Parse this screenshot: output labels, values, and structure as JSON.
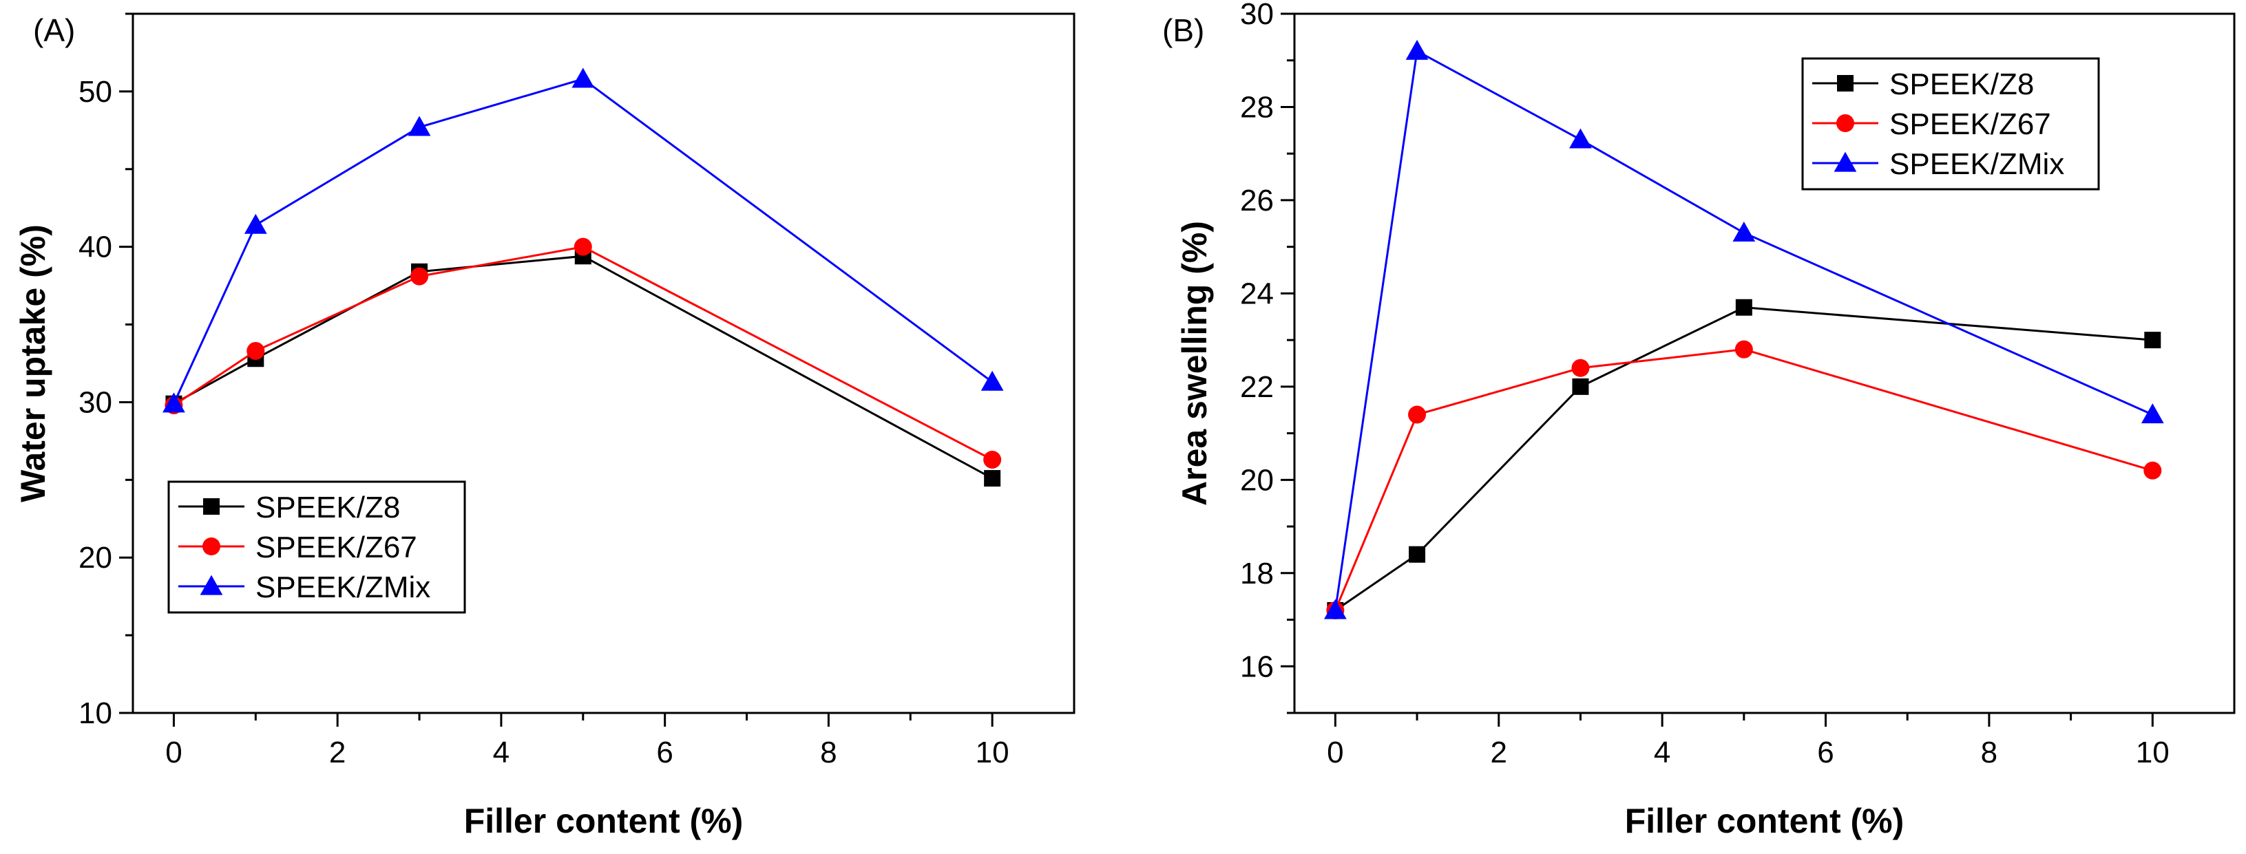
{
  "chart_data": [
    {
      "type": "line",
      "panel": "(A)",
      "xlabel": "Filler content (%)",
      "ylabel": "Water uptake (%)",
      "xlim": [
        -0.5,
        11
      ],
      "ylim": [
        10,
        55
      ],
      "xticks": [
        0,
        2,
        4,
        6,
        8,
        10
      ],
      "yticks": [
        10,
        20,
        30,
        40,
        50
      ],
      "legend_position": "lower-left",
      "x": [
        0,
        1,
        3,
        5,
        10
      ],
      "series": [
        {
          "name": "SPEEK/Z8",
          "color": "#000000",
          "marker": "square",
          "values": [
            29.9,
            32.8,
            38.4,
            39.4,
            25.1
          ]
        },
        {
          "name": "SPEEK/Z67",
          "color": "#ff0000",
          "marker": "circle",
          "values": [
            29.8,
            33.3,
            38.1,
            40.0,
            26.3
          ]
        },
        {
          "name": "SPEEK/ZMix",
          "color": "#0000ff",
          "marker": "triangle",
          "values": [
            29.9,
            41.4,
            47.7,
            50.8,
            31.3
          ]
        }
      ]
    },
    {
      "type": "line",
      "panel": "(B)",
      "xlabel": "Filler content (%)",
      "ylabel": "Area swelling (%)",
      "xlim": [
        -0.5,
        11
      ],
      "ylim": [
        15,
        30
      ],
      "xticks": [
        0,
        2,
        4,
        6,
        8,
        10
      ],
      "yticks": [
        16,
        18,
        20,
        22,
        24,
        26,
        28,
        30
      ],
      "legend_position": "top-right",
      "x": [
        0,
        1,
        3,
        5,
        10
      ],
      "series": [
        {
          "name": "SPEEK/Z8",
          "color": "#000000",
          "marker": "square",
          "values": [
            17.2,
            18.4,
            22.0,
            23.7,
            23.0
          ]
        },
        {
          "name": "SPEEK/Z67",
          "color": "#ff0000",
          "marker": "circle",
          "values": [
            17.2,
            21.4,
            22.4,
            22.8,
            20.2
          ]
        },
        {
          "name": "SPEEK/ZMix",
          "color": "#0000ff",
          "marker": "triangle",
          "values": [
            17.2,
            29.2,
            27.3,
            25.3,
            21.4
          ]
        }
      ]
    }
  ]
}
